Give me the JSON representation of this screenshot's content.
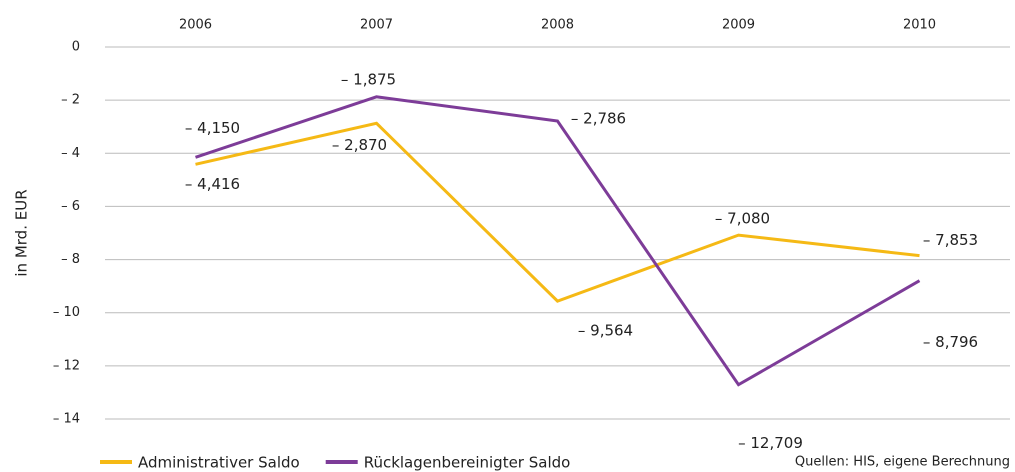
{
  "chart_data": {
    "type": "line",
    "y_label": "in Mrd. EUR",
    "source": "Quellen: HIS, eigene Berechnung",
    "categories": [
      "2006",
      "2007",
      "2008",
      "2009",
      "2010"
    ],
    "series": [
      {
        "name": "Administrativer Saldo",
        "color": "#f5b915",
        "values": [
          -4.416,
          -2.87,
          -9.564,
          -7.08,
          -7.853
        ],
        "value_labels": [
          "– 4,416",
          "– 2,870",
          "– 9,564",
          "– 7,080",
          "– 7,853"
        ]
      },
      {
        "name": "Rücklagenbereinigter Saldo",
        "color": "#7d3c98",
        "values": [
          -4.15,
          -1.875,
          -2.786,
          -12.709,
          -8.796
        ],
        "value_labels": [
          "– 4,150",
          "– 1,875",
          "– 2,786",
          "– 12,709",
          "– 8,796"
        ]
      }
    ],
    "ylim": [
      -14,
      0
    ],
    "yticks": [
      0,
      {
        "value": -2,
        "label": "– 2"
      },
      {
        "value": -4,
        "label": "– 4"
      },
      {
        "value": -6,
        "label": "– 6"
      },
      {
        "value": -8,
        "label": "– 8"
      },
      {
        "value": -10,
        "label": "– 10"
      },
      {
        "value": -12,
        "label": "– 12"
      },
      {
        "value": -14,
        "label": "– 14"
      }
    ],
    "grid": true,
    "legend": "bottom-left"
  }
}
